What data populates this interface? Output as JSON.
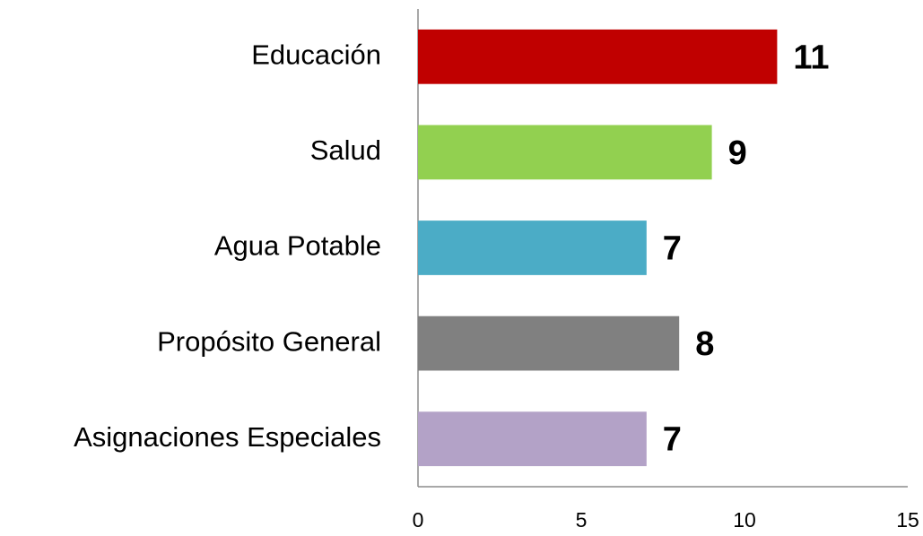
{
  "chart_data": {
    "type": "bar",
    "orientation": "horizontal",
    "categories": [
      "Educación",
      "Salud",
      "Agua Potable",
      "Propósito General",
      "Asignaciones Especiales"
    ],
    "values": [
      11,
      9,
      7,
      8,
      7
    ],
    "colors": [
      "#c00000",
      "#92d050",
      "#4bacc6",
      "#808080",
      "#b3a2c7"
    ],
    "xlim": [
      0,
      15
    ],
    "xticks": [
      0,
      5,
      10,
      15
    ],
    "grid": false
  }
}
